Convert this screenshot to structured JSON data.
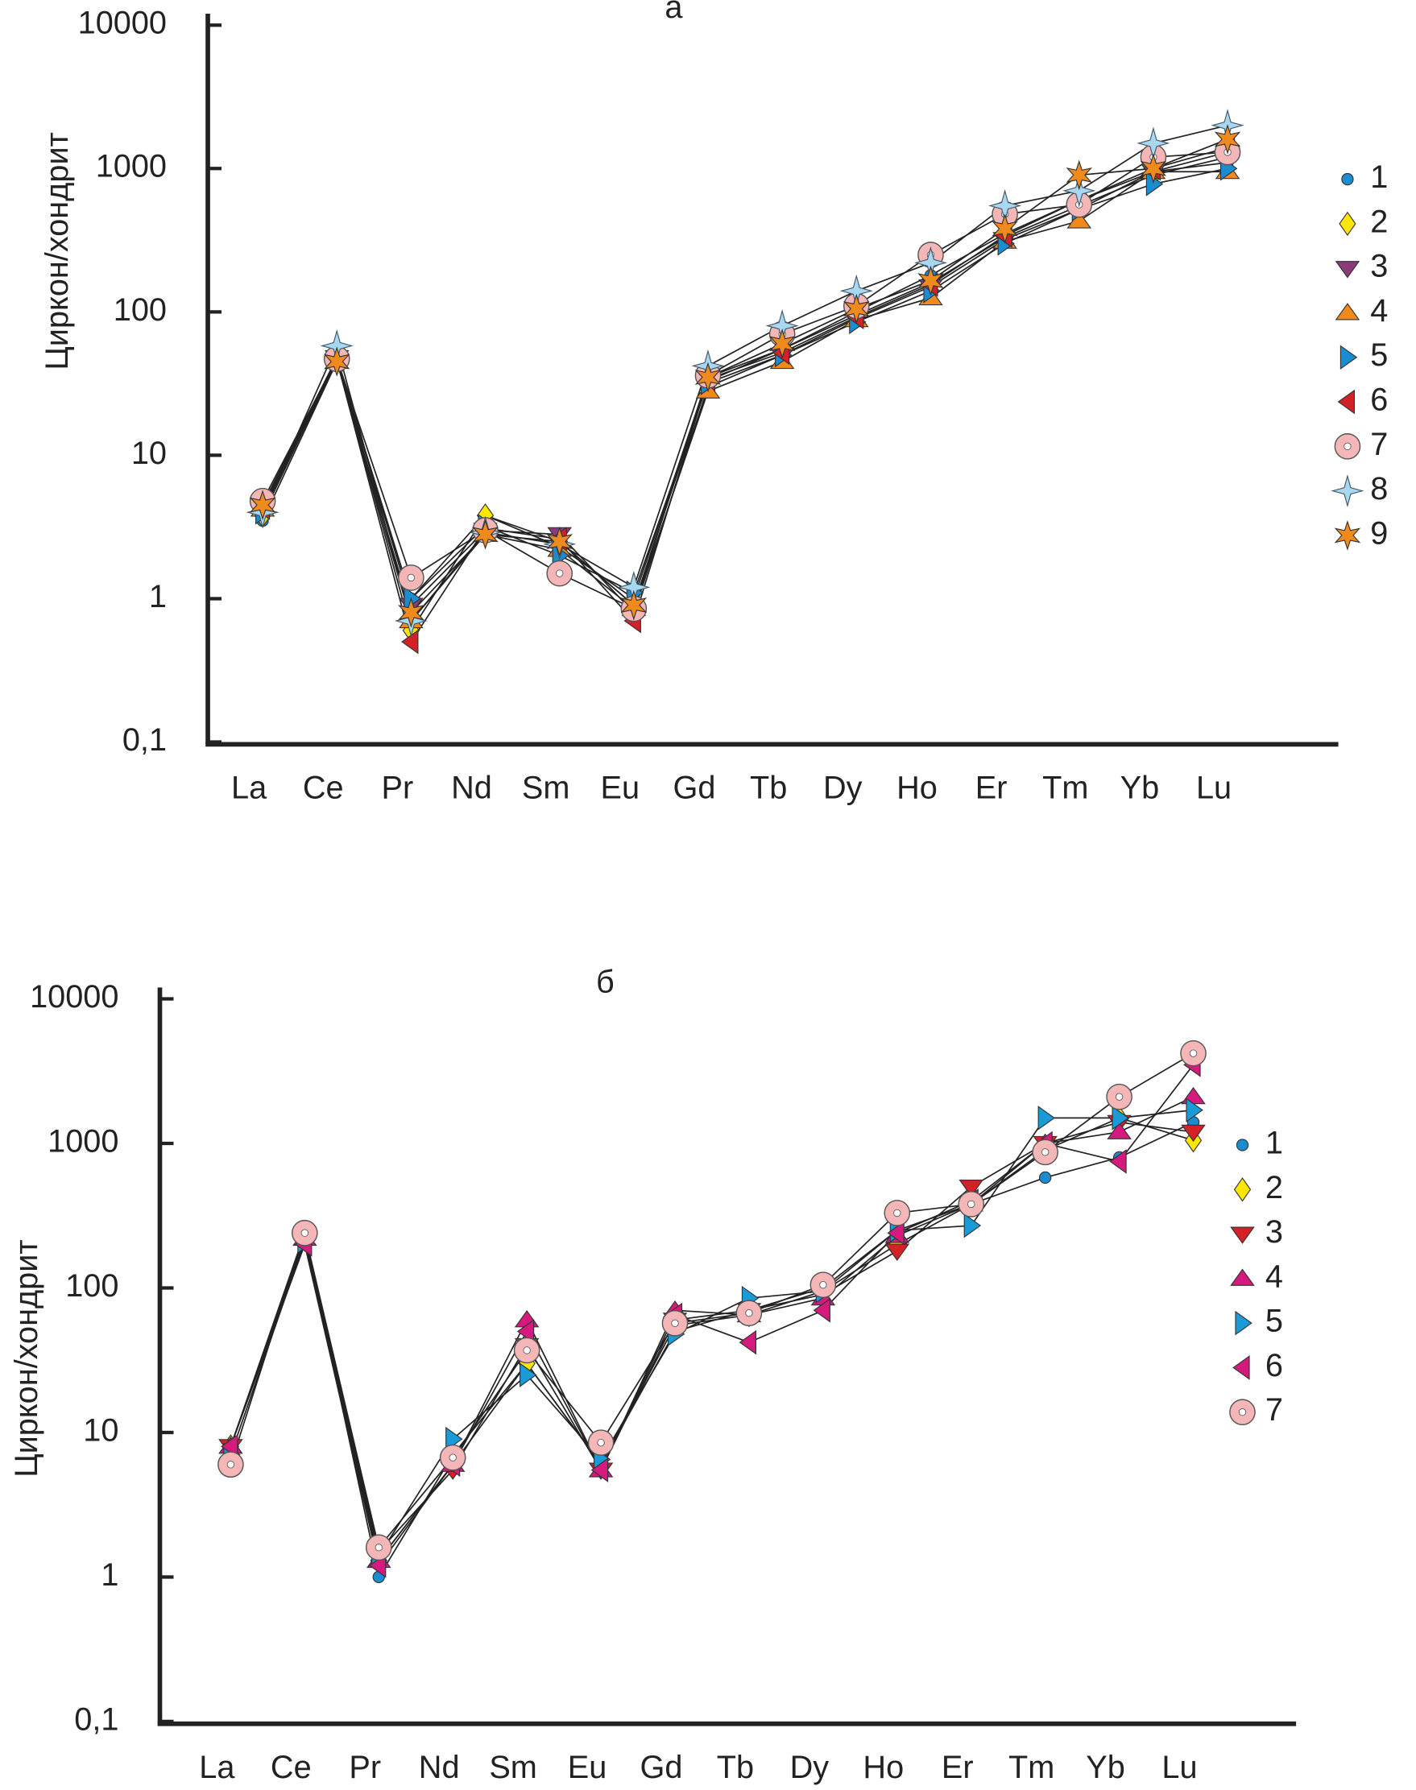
{
  "chart_data": [
    {
      "type": "line",
      "title": "а",
      "ylabel": "Циркон/хондрит",
      "log_scale": true,
      "legend": "right",
      "categories": [
        "La",
        "Ce",
        "Pr",
        "Nd",
        "Sm",
        "Eu",
        "Gd",
        "Tb",
        "Dy",
        "Ho",
        "Er",
        "Tm",
        "Yb",
        "Lu"
      ],
      "ylim": [
        0.1,
        10000
      ],
      "yticks": [
        {
          "value": 0.1,
          "label": "0,1"
        },
        1,
        10,
        100,
        1000,
        10000
      ],
      "series": [
        {
          "name": "1",
          "color": "#1a8ccf",
          "marker": "dot",
          "values": [
            3.5,
            45,
            1.0,
            3.8,
            2.3,
            1.0,
            35,
            55,
            100,
            180,
            350,
            600,
            950,
            1100
          ]
        },
        {
          "name": "2",
          "color": "#ffe600",
          "marker": "diamond",
          "values": [
            3.8,
            46,
            0.6,
            3.8,
            2.5,
            0.9,
            33,
            55,
            95,
            160,
            330,
            550,
            900,
            1200
          ]
        },
        {
          "name": "3",
          "color": "#8b3a7a",
          "marker": "tri-down",
          "values": [
            4.5,
            48,
            0.9,
            3.0,
            2.8,
            0.8,
            30,
            50,
            90,
            150,
            320,
            520,
            950,
            1300
          ]
        },
        {
          "name": "4",
          "color": "#f08a1c",
          "marker": "tri-up",
          "values": [
            4.2,
            45,
            0.7,
            2.8,
            2.2,
            0.85,
            28,
            45,
            88,
            125,
            310,
            430,
            950,
            950
          ]
        },
        {
          "name": "5",
          "color": "#1a8ccf",
          "marker": "tri-right",
          "values": [
            4.0,
            47,
            1.0,
            3.2,
            2.0,
            1.1,
            32,
            50,
            85,
            140,
            300,
            520,
            780,
            1000
          ]
        },
        {
          "name": "6",
          "color": "#d42027",
          "marker": "tri-left",
          "values": [
            4.3,
            46,
            0.5,
            3.1,
            2.6,
            0.7,
            34,
            52,
            92,
            155,
            340,
            600,
            1000,
            1400
          ]
        },
        {
          "name": "7",
          "color": "#f4b6b6",
          "marker": "ring",
          "values": [
            4.8,
            47,
            1.4,
            3.0,
            1.5,
            0.85,
            36,
            70,
            110,
            250,
            480,
            560,
            1200,
            1300
          ]
        },
        {
          "name": "8",
          "color": "#a8d8f0",
          "marker": "star4",
          "values": [
            4.0,
            58,
            0.7,
            2.9,
            2.4,
            1.2,
            42,
            80,
            140,
            220,
            550,
            700,
            1500,
            2000
          ]
        },
        {
          "name": "9",
          "color": "#f08a1c",
          "marker": "star6",
          "values": [
            4.5,
            45,
            0.8,
            2.8,
            2.5,
            0.9,
            35,
            60,
            105,
            165,
            380,
            900,
            1000,
            1600
          ]
        }
      ]
    },
    {
      "type": "line",
      "title": "б",
      "ylabel": "Циркон/хондрит",
      "log_scale": true,
      "legend": "right",
      "categories": [
        "La",
        "Ce",
        "Pr",
        "Nd",
        "Sm",
        "Eu",
        "Gd",
        "Tb",
        "Dy",
        "Ho",
        "Er",
        "Tm",
        "Yb",
        "Lu"
      ],
      "ylim": [
        0.1,
        10000
      ],
      "yticks": [
        {
          "value": 0.1,
          "label": "0,1"
        },
        1,
        10,
        100,
        1000,
        10000
      ],
      "series": [
        {
          "name": "1",
          "color": "#1a8ccf",
          "marker": "dot",
          "values": [
            8,
            240,
            1.0,
            7,
            30,
            6,
            50,
            70,
            100,
            250,
            380,
            580,
            800,
            1400
          ]
        },
        {
          "name": "2",
          "color": "#ffe600",
          "marker": "diamond",
          "values": [
            8,
            220,
            1.3,
            6,
            30,
            6,
            55,
            65,
            95,
            200,
            380,
            900,
            1500,
            1050
          ]
        },
        {
          "name": "3",
          "color": "#d42027",
          "marker": "tri-down",
          "values": [
            8,
            230,
            1.5,
            5.5,
            40,
            5.5,
            60,
            70,
            90,
            180,
            500,
            1000,
            1400,
            1200
          ]
        },
        {
          "name": "4",
          "color": "#d6197d",
          "marker": "tri-up",
          "values": [
            8,
            220,
            1.3,
            6,
            60,
            5.5,
            70,
            65,
            85,
            230,
            380,
            1000,
            1200,
            2100
          ]
        },
        {
          "name": "5",
          "color": "#1a9ad6",
          "marker": "tri-right",
          "values": [
            7,
            210,
            1.4,
            9,
            25,
            6.5,
            48,
            85,
            95,
            250,
            270,
            1500,
            1500,
            1700
          ]
        },
        {
          "name": "6",
          "color": "#d6197d",
          "marker": "tri-left",
          "values": [
            8,
            200,
            1.2,
            6,
            50,
            5.5,
            65,
            42,
            70,
            240,
            400,
            1000,
            750,
            3500
          ]
        },
        {
          "name": "7",
          "color": "#f4b6b6",
          "marker": "ring",
          "values": [
            6,
            240,
            1.6,
            6.7,
            37,
            8.5,
            57,
            67,
            105,
            330,
            380,
            870,
            2100,
            4200
          ]
        }
      ]
    }
  ]
}
